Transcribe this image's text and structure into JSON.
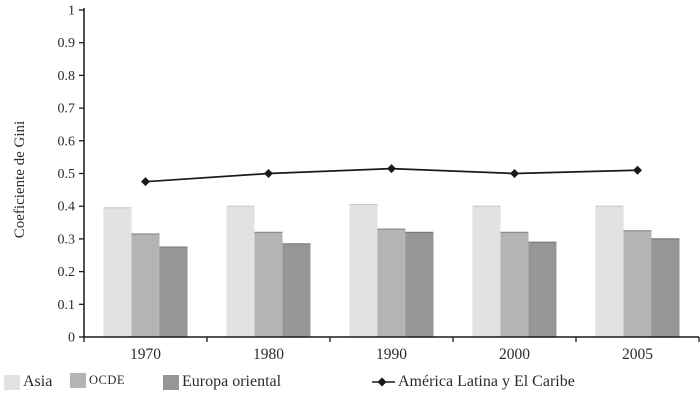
{
  "chart_data": {
    "type": "bar",
    "title": "",
    "ylabel": "Coeficiente de Gini",
    "xlabel": "",
    "categories": [
      "1970",
      "1980",
      "1990",
      "2000",
      "2005"
    ],
    "bar_series": [
      {
        "name": "Asia",
        "color": "#e2e2e2",
        "edge_color": "#c9c9c9",
        "values": [
          0.395,
          0.4,
          0.405,
          0.4,
          0.4
        ]
      },
      {
        "name": "OCDE",
        "color": "#b4b4b4",
        "edge_color": "#8e8e8e",
        "values": [
          0.315,
          0.32,
          0.33,
          0.32,
          0.325
        ]
      },
      {
        "name": "Europa oriental",
        "color": "#969696",
        "edge_color": "#7b7b7b",
        "values": [
          0.275,
          0.285,
          0.32,
          0.29,
          0.3
        ]
      }
    ],
    "line_series": [
      {
        "name": "América Latina y El Caribe",
        "color": "#1a1a1a",
        "marker": "diamond",
        "values": [
          0.475,
          0.5,
          0.515,
          0.5,
          0.51
        ]
      }
    ],
    "ylim": [
      0,
      1
    ],
    "ytick_labels": [
      "0",
      "0.1",
      "0.2",
      "0.3",
      "0.4",
      "0.5",
      "0.6",
      "0.7",
      "0.8",
      "0.9",
      "1"
    ],
    "grid": false,
    "legend_position": "bottom",
    "axis_color": "#1a1a1a"
  }
}
